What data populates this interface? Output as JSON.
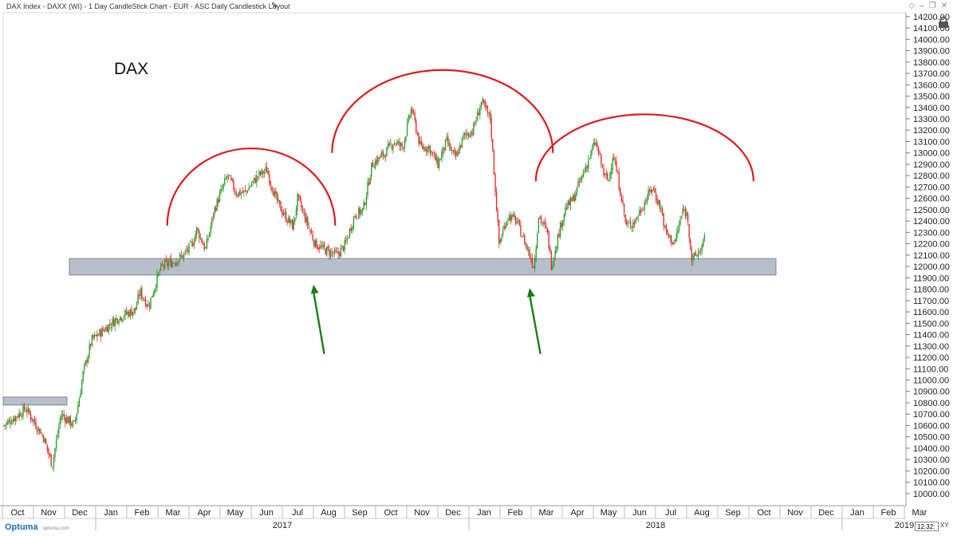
{
  "header": {
    "title": "DAX Index - DAXX (WI) - 1 Day CandleStick Chart - EUR - ASC Daily Candlestick Layout",
    "edit_icon": "pencil-icon",
    "window_icons": [
      "diamond-icon",
      "minimize-icon",
      "restore-icon",
      "close-icon"
    ]
  },
  "footer": {
    "logo_text": "Optuma",
    "logo_sub": "optuma.com",
    "scale_value": "12.32:",
    "xy_label": "XY"
  },
  "colors": {
    "up": "#2e9e2e",
    "down": "#e0312f",
    "support_zone": "#b7bfcb",
    "arc": "#e0191b",
    "arrow": "#1a7d1a"
  },
  "chart_data": {
    "type": "candlestick",
    "title": "DAX",
    "ylim": [
      9950,
      14220
    ],
    "y_ticks": [
      10000,
      10100,
      10200,
      10300,
      10400,
      10500,
      10600,
      10700,
      10800,
      10900,
      11000,
      11100,
      11200,
      11300,
      11400,
      11500,
      11600,
      11700,
      11800,
      11900,
      12000,
      12100,
      12200,
      12300,
      12400,
      12500,
      12600,
      12700,
      12800,
      12900,
      13000,
      13100,
      13200,
      13300,
      13400,
      13500,
      13600,
      13700,
      13800,
      13900,
      14000,
      14100,
      14200
    ],
    "x_months": [
      "Oct",
      "Nov",
      "Dec",
      "Jan",
      "Feb",
      "Mar",
      "Apr",
      "May",
      "Jun",
      "Jul",
      "Aug",
      "Sep",
      "Oct",
      "Nov",
      "Dec",
      "Jan",
      "Feb",
      "Mar",
      "Apr",
      "May",
      "Jun",
      "Jul",
      "Aug",
      "Sep",
      "Oct",
      "Nov",
      "Dec",
      "Jan",
      "Feb",
      "Mar"
    ],
    "x_years": [
      "2017",
      "2018",
      "2019"
    ],
    "support_zones": [
      [
        10780,
        10850
      ],
      [
        11925,
        12070
      ]
    ],
    "price_path": [
      [
        0,
        10600
      ],
      [
        5,
        10750
      ],
      [
        9,
        10500
      ],
      [
        11,
        10250
      ],
      [
        13,
        10700
      ],
      [
        16,
        10600
      ],
      [
        17,
        10800
      ],
      [
        18,
        11050
      ],
      [
        20,
        11350
      ],
      [
        23,
        11450
      ],
      [
        26,
        11550
      ],
      [
        30,
        11620
      ],
      [
        31,
        11780
      ],
      [
        33,
        11650
      ],
      [
        35,
        11900
      ],
      [
        36,
        12000
      ],
      [
        39,
        12050
      ],
      [
        41,
        12100
      ],
      [
        43,
        12200
      ],
      [
        44,
        12330
      ],
      [
        46,
        12150
      ],
      [
        48,
        12500
      ],
      [
        51,
        12800
      ],
      [
        53,
        12650
      ],
      [
        55,
        12650
      ],
      [
        58,
        12800
      ],
      [
        60,
        12850
      ],
      [
        62,
        12600
      ],
      [
        64,
        12450
      ],
      [
        66,
        12350
      ],
      [
        67,
        12600
      ],
      [
        69,
        12400
      ],
      [
        71,
        12200
      ],
      [
        73,
        12150
      ],
      [
        76,
        12100
      ],
      [
        78,
        12200
      ],
      [
        80,
        12450
      ],
      [
        82,
        12500
      ],
      [
        84,
        12900
      ],
      [
        87,
        13000
      ],
      [
        89,
        13100
      ],
      [
        91,
        13050
      ],
      [
        93,
        13400
      ],
      [
        95,
        13050
      ],
      [
        97,
        13050
      ],
      [
        99,
        12900
      ],
      [
        101,
        13100
      ],
      [
        103,
        12950
      ],
      [
        105,
        13150
      ],
      [
        107,
        13200
      ],
      [
        109,
        13450
      ],
      [
        111,
        13300
      ],
      [
        113,
        12200
      ],
      [
        115,
        12450
      ],
      [
        117,
        12400
      ],
      [
        119,
        12200
      ],
      [
        121,
        12000
      ],
      [
        122,
        12450
      ],
      [
        124,
        12300
      ],
      [
        125,
        12000
      ],
      [
        126,
        12200
      ],
      [
        128,
        12500
      ],
      [
        130,
        12600
      ],
      [
        132,
        12800
      ],
      [
        134,
        13000
      ],
      [
        135,
        13100
      ],
      [
        137,
        12800
      ],
      [
        138,
        12750
      ],
      [
        139,
        13000
      ],
      [
        141,
        12600
      ],
      [
        142,
        12350
      ],
      [
        144,
        12400
      ],
      [
        146,
        12550
      ],
      [
        148,
        12700
      ],
      [
        150,
        12500
      ],
      [
        151,
        12300
      ],
      [
        153,
        12200
      ],
      [
        155,
        12500
      ],
      [
        156,
        12450
      ],
      [
        157,
        12050
      ],
      [
        159,
        12150
      ],
      [
        160,
        12250
      ]
    ],
    "arcs": [
      {
        "month_center": 8.0,
        "half_width_months": 2.7,
        "top_price": 13040,
        "end_price": 12360
      },
      {
        "month_center": 14.15,
        "half_width_months": 3.55,
        "top_price": 13730,
        "end_price": 13000
      },
      {
        "month_center": 20.65,
        "half_width_months": 3.5,
        "top_price": 13340,
        "end_price": 12750
      }
    ],
    "arrows": [
      {
        "from_month": 10.35,
        "from_price": 11230,
        "to_month": 10.0,
        "to_price": 11840
      },
      {
        "from_month": 17.3,
        "from_price": 11230,
        "to_month": 16.95,
        "to_price": 11810
      }
    ]
  }
}
